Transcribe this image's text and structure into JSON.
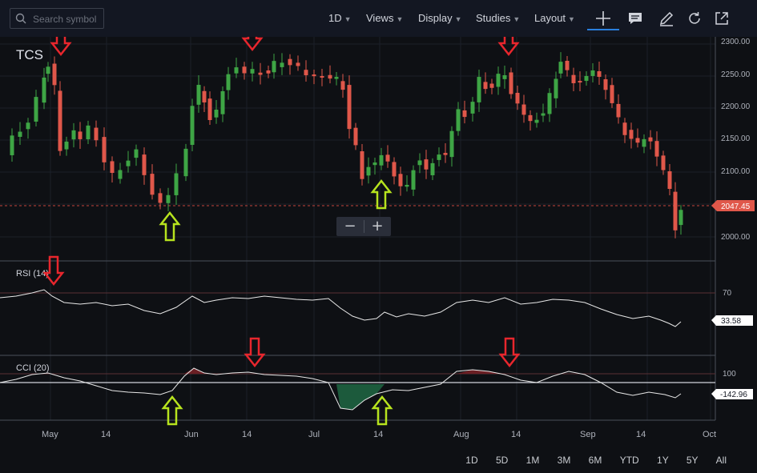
{
  "toolbar": {
    "search_placeholder": "Search symbol",
    "interval": "1D",
    "views": "Views",
    "display": "Display",
    "studies": "Studies",
    "layout": "Layout",
    "icons": [
      "crosshair-icon",
      "comment-icon",
      "pencil-icon",
      "refresh-icon",
      "popout-icon"
    ]
  },
  "chart": {
    "symbol": "TCS",
    "last_price": "2047.45",
    "price_axis": [
      "2300.00",
      "2250.00",
      "2200.00",
      "2150.00",
      "2100.00",
      "2050.00",
      "2000.00"
    ],
    "date_axis": [
      "May",
      "14",
      "Jun",
      "14",
      "Jul",
      "14",
      "Aug",
      "14",
      "Sep",
      "14",
      "Oct"
    ],
    "rsi": {
      "label": "RSI (14)",
      "level": "70",
      "value": "33.58"
    },
    "cci": {
      "label": "CCI (20)",
      "level": "100",
      "value": "-142.96"
    },
    "colors": {
      "up": "#3ea545",
      "down": "#e0574a",
      "arrow_red": "#e8262d",
      "arrow_green": "#b7e31e",
      "price_tag": "#e0574a"
    }
  },
  "zoom": {
    "minus": "−",
    "plus": "+"
  },
  "ranges": [
    "1D",
    "5D",
    "1M",
    "3M",
    "6M",
    "YTD",
    "1Y",
    "5Y",
    "All"
  ]
}
